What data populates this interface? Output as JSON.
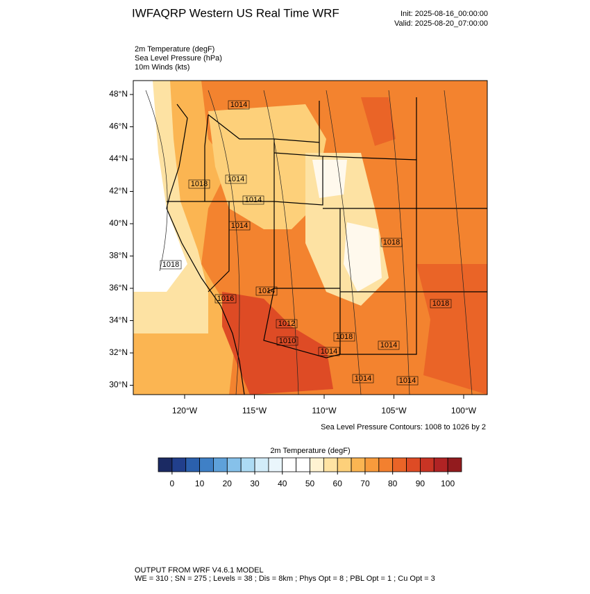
{
  "header": {
    "title": "IWFAQRP Western US Real Time WRF",
    "init": "Init: 2025-08-16_00:00:00",
    "valid": "Valid: 2025-08-20_07:00:00"
  },
  "fields": [
    "2m Temperature   (degF)",
    "Sea Level Pressure   (hPa)",
    "10m Winds   (kts)"
  ],
  "map": {
    "lat_ticks": [
      "48°N",
      "46°N",
      "44°N",
      "42°N",
      "40°N",
      "38°N",
      "36°N",
      "34°N",
      "32°N",
      "30°N"
    ],
    "lon_ticks": [
      "120°W",
      "115°W",
      "110°W",
      "105°W",
      "100°W"
    ],
    "pressure_labels": [
      "1014",
      "1014",
      "1018",
      "1014",
      "1014",
      "1018",
      "1018",
      "1014",
      "1012",
      "1010",
      "1016",
      "1018",
      "1018",
      "1014",
      "1014",
      "1014",
      "1014"
    ]
  },
  "contour_note": "Sea Level Pressure Contours: 1008 to 1026 by 2",
  "colorbar": {
    "title": "2m Temperature  (degF)",
    "colors": [
      "#1b2a63",
      "#213f8c",
      "#2b60ad",
      "#3f80c6",
      "#5ea1da",
      "#86c1ea",
      "#addbf4",
      "#d2ecf9",
      "#eaf6fc",
      "#ffffff",
      "#ffffff",
      "#fff3d2",
      "#ffe3a3",
      "#fdd07a",
      "#fbb552",
      "#f89b3c",
      "#f3802f",
      "#ea6427",
      "#de4b25",
      "#c93424",
      "#b02324",
      "#921b1e"
    ],
    "ticks": [
      0,
      10,
      20,
      30,
      40,
      50,
      60,
      70,
      80,
      90,
      100
    ]
  },
  "footer": {
    "line1": "OUTPUT FROM WRF V4.6.1 MODEL",
    "line2": "WE = 310 ; SN = 275 ; Levels = 38 ; Dis = 8km ; Phys Opt = 8 ; PBL Opt = 1 ; Cu Opt = 3"
  }
}
